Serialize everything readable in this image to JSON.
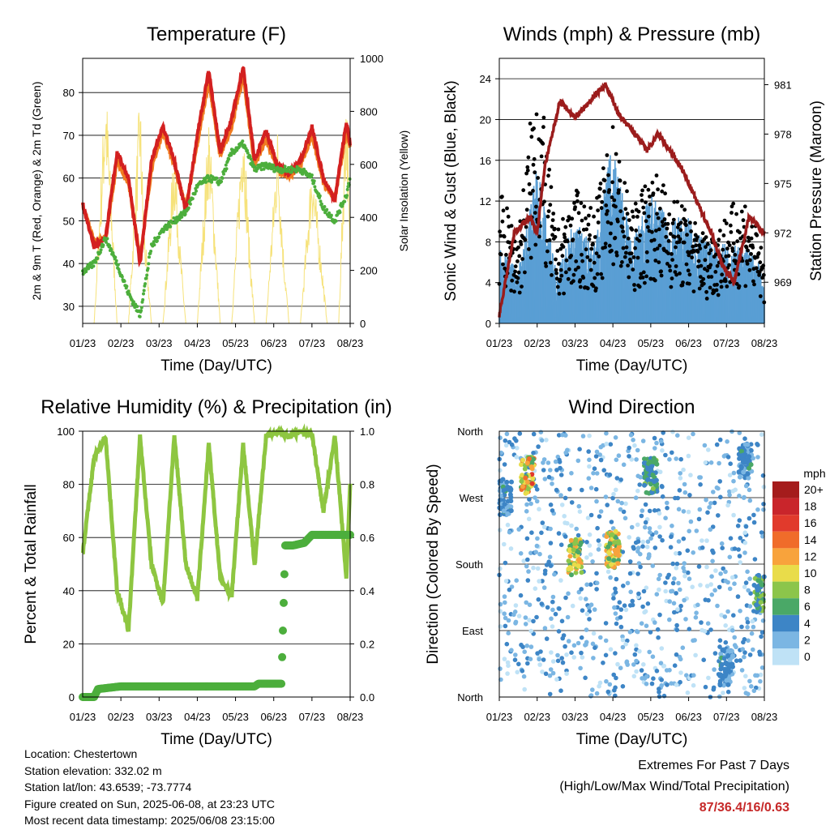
{
  "panels": {
    "temperature": {
      "title": "Temperature (F)",
      "ylabel_left": "2m & 9m T (Red, Orange) & 2m Td (Green)",
      "ylabel_right": "Solar Insolation (Yellow)",
      "xlabel": "Time (Day/UTC)"
    },
    "wind": {
      "title": "Winds (mph) & Pressure (mb)",
      "ylabel_left": "Sonic Wind & Gust (Blue, Black)",
      "ylabel_right": "Station Pressure (Maroon)",
      "xlabel": "Time (Day/UTC)"
    },
    "humidity": {
      "title": "Relative Humidity (%) & Precipitation (in)",
      "ylabel_left": "Percent & Total Rainfall",
      "xlabel": "Time (Day/UTC)"
    },
    "direction": {
      "title": "Wind Direction",
      "ylabel_left": "Direction (Colored By Speed)",
      "xlabel": "Time (Day/UTC)",
      "legend_title": "mph"
    }
  },
  "info": {
    "location": "Location: Chestertown",
    "elevation": "Station elevation: 332.02 m",
    "latlon": "Station lat/lon: 43.6539; -73.7774",
    "created": "Figure created on Sun, 2025-06-08, at 23:23 UTC",
    "recent": "Most recent data timestamp: 2025/06/08 23:15:00"
  },
  "extremes": {
    "line1": "Extremes For Past 7 Days",
    "line2": "(High/Low/Max Wind/Total Precipitation)",
    "values": "87/36.4/16/0.63"
  },
  "chart_data": [
    {
      "type": "line",
      "title": "Temperature (F)",
      "xlabel": "Time (Day/UTC)",
      "ylabel": "2m & 9m T (Red, Orange) & 2m Td (Green)",
      "y2label": "Solar Insolation (Yellow)",
      "x_ticks": [
        "01/23",
        "02/23",
        "03/23",
        "04/23",
        "05/23",
        "06/23",
        "07/23",
        "08/23"
      ],
      "ylim": [
        26,
        88
      ],
      "y_ticks": [
        30,
        40,
        50,
        60,
        70,
        80
      ],
      "y2lim": [
        0,
        1000
      ],
      "y2_ticks": [
        0,
        200,
        400,
        600,
        800,
        1000
      ],
      "grid": true,
      "x": [
        0,
        0.3,
        0.6,
        0.9,
        1.2,
        1.5,
        1.8,
        2.1,
        2.4,
        2.7,
        3.0,
        3.3,
        3.6,
        3.9,
        4.2,
        4.5,
        4.8,
        5.1,
        5.4,
        5.7,
        6.0,
        6.3,
        6.6,
        6.9,
        7.0
      ],
      "series": [
        {
          "name": "2m T",
          "color": "#d32020",
          "values": [
            54,
            44,
            46,
            66,
            60,
            40,
            64,
            72,
            64,
            52,
            70,
            85,
            66,
            74,
            86,
            64,
            71,
            63,
            61,
            64,
            72,
            60,
            55,
            73,
            68
          ]
        },
        {
          "name": "9m T",
          "color": "#f07c20",
          "values": [
            54,
            45,
            46,
            64,
            59,
            41,
            62,
            71,
            63,
            53,
            68,
            83,
            65,
            72,
            84,
            63,
            69,
            62,
            60,
            63,
            70,
            59,
            55,
            71,
            67
          ]
        },
        {
          "name": "2m Td",
          "color": "#4cae3c",
          "values": [
            38,
            40,
            46,
            40,
            33,
            28,
            44,
            48,
            50,
            52,
            58,
            60,
            59,
            66,
            68,
            62,
            63,
            62,
            62,
            62,
            60,
            53,
            50,
            56,
            60
          ]
        },
        {
          "name": "Solar",
          "color": "#f6e27a",
          "axis": "y2",
          "x": [
            0,
            0.3,
            0.6,
            0.75,
            0.9,
            1.2,
            1.5,
            1.6,
            1.8,
            2.1,
            2.4,
            2.55,
            2.7,
            3.0,
            3.3,
            3.45,
            3.6,
            3.9,
            4.2,
            4.35,
            4.5,
            4.8,
            5.1,
            5.25,
            5.4,
            5.7,
            6.0,
            6.25,
            6.4,
            6.7,
            6.9,
            7.0
          ],
          "values": [
            0,
            0,
            950,
            500,
            0,
            0,
            900,
            400,
            0,
            0,
            700,
            300,
            0,
            0,
            800,
            400,
            0,
            0,
            850,
            350,
            0,
            0,
            750,
            300,
            0,
            0,
            650,
            250,
            0,
            0,
            950,
            300
          ]
        }
      ]
    },
    {
      "type": "scatter",
      "title": "Winds (mph) & Pressure (mb)",
      "xlabel": "Time (Day/UTC)",
      "ylabel": "Sonic Wind & Gust (Blue, Black)",
      "y2label": "Station Pressure (Maroon)",
      "x_ticks": [
        "01/23",
        "02/23",
        "03/23",
        "04/23",
        "05/23",
        "06/23",
        "07/23",
        "08/23"
      ],
      "ylim": [
        0,
        26
      ],
      "y_ticks": [
        0,
        4,
        8,
        12,
        16,
        20,
        24
      ],
      "y2lim": [
        966.5,
        982.6
      ],
      "y2_ticks": [
        969,
        972,
        975,
        978,
        981
      ],
      "grid": true,
      "x": [
        0,
        0.5,
        1.0,
        1.5,
        2.0,
        2.5,
        3.0,
        3.5,
        4.0,
        4.5,
        5.0,
        5.5,
        6.0,
        6.5,
        7.0
      ],
      "series": [
        {
          "name": "Sonic Wind",
          "color": "#5a9fd4",
          "values": [
            6,
            4,
            12,
            4,
            8,
            6,
            14,
            6,
            10,
            8,
            8,
            6,
            6,
            6,
            4
          ]
        },
        {
          "name": "Gust",
          "color": "#000000",
          "values": [
            12,
            8,
            24,
            8,
            12,
            10,
            18,
            10,
            14,
            12,
            10,
            8,
            10,
            12,
            6
          ]
        },
        {
          "name": "Station Pressure",
          "color": "#9b1c1c",
          "axis": "y2",
          "x": [
            0,
            0.4,
            0.8,
            1.0,
            1.2,
            1.6,
            2.0,
            2.4,
            2.8,
            3.2,
            3.6,
            3.9,
            4.2,
            4.5,
            4.8,
            5.2,
            5.6,
            5.9,
            6.2,
            6.6,
            7.0
          ],
          "values": [
            967,
            972,
            973,
            972,
            976,
            980,
            979,
            980,
            981,
            979,
            978,
            977,
            978,
            977,
            976,
            974,
            972,
            970,
            969,
            973,
            972
          ]
        }
      ]
    },
    {
      "type": "line",
      "title": "Relative Humidity (%) & Precipitation (in)",
      "xlabel": "Time (Day/UTC)",
      "ylabel": "Percent & Total Rainfall",
      "x_ticks": [
        "01/23",
        "02/23",
        "03/23",
        "04/23",
        "05/23",
        "06/23",
        "07/23",
        "08/23"
      ],
      "ylim": [
        0,
        100
      ],
      "y_ticks": [
        0,
        20,
        40,
        60,
        80,
        100
      ],
      "y2lim": [
        0,
        1.0
      ],
      "y2_ticks": [
        "0.0",
        "0.2",
        "0.4",
        "0.6",
        "0.8",
        "1.0"
      ],
      "grid": true,
      "x": [
        0,
        0.3,
        0.6,
        0.9,
        1.2,
        1.5,
        1.8,
        2.1,
        2.4,
        2.7,
        3.0,
        3.3,
        3.6,
        3.9,
        4.2,
        4.5,
        4.8,
        5.1,
        5.4,
        5.7,
        6.0,
        6.3,
        6.6,
        6.9,
        7.0
      ],
      "series": [
        {
          "name": "Relative Humidity",
          "color": "#8ec641",
          "values": [
            54,
            90,
            98,
            40,
            25,
            98,
            50,
            35,
            98,
            50,
            37,
            95,
            45,
            38,
            95,
            50,
            98,
            100,
            98,
            100,
            99,
            70,
            98,
            45,
            80
          ]
        },
        {
          "name": "Total Rainfall",
          "color": "#4cae3c",
          "axis": "y2",
          "x": [
            0,
            0.3,
            0.4,
            1.0,
            2.0,
            3.0,
            4.0,
            4.5,
            4.6,
            5.0,
            5.2,
            5.25,
            5.3,
            5.5,
            5.8,
            6.0,
            6.5,
            7.0
          ],
          "values": [
            0,
            0,
            0.03,
            0.04,
            0.04,
            0.04,
            0.04,
            0.04,
            0.05,
            0.05,
            0.05,
            0.3,
            0.57,
            0.57,
            0.58,
            0.61,
            0.61,
            0.61
          ]
        }
      ]
    },
    {
      "type": "scatter",
      "title": "Wind Direction",
      "xlabel": "Time (Day/UTC)",
      "ylabel": "Direction (Colored By Speed)",
      "x_ticks": [
        "01/23",
        "02/23",
        "03/23",
        "04/23",
        "05/23",
        "06/23",
        "07/23",
        "08/23"
      ],
      "y_ticks": [
        "North",
        "East",
        "South",
        "West",
        "North"
      ],
      "ylim": [
        0,
        360
      ],
      "grid": true,
      "legend": {
        "title": "mph",
        "labels": [
          "20+",
          "18",
          "16",
          "14",
          "12",
          "10",
          "8",
          "6",
          "4",
          "2",
          "0"
        ],
        "colors": [
          "#a51c1c",
          "#c9252b",
          "#e13a2c",
          "#f06c2a",
          "#f8a33c",
          "#e9dc4a",
          "#8cc54b",
          "#4aa867",
          "#3d85c6",
          "#7bb6e3",
          "#bfe2f6"
        ]
      },
      "clusters": [
        {
          "x": 0.15,
          "dir": 270,
          "speed": 4
        },
        {
          "x": 0.75,
          "dir": 300,
          "speed": 12
        },
        {
          "x": 2.0,
          "dir": 190,
          "speed": 10
        },
        {
          "x": 3.0,
          "dir": 200,
          "speed": 10
        },
        {
          "x": 4.0,
          "dir": 300,
          "speed": 6
        },
        {
          "x": 6.0,
          "dir": 40,
          "speed": 4
        },
        {
          "x": 6.5,
          "dir": 320,
          "speed": 4
        },
        {
          "x": 6.9,
          "dir": 140,
          "speed": 6
        }
      ]
    }
  ]
}
